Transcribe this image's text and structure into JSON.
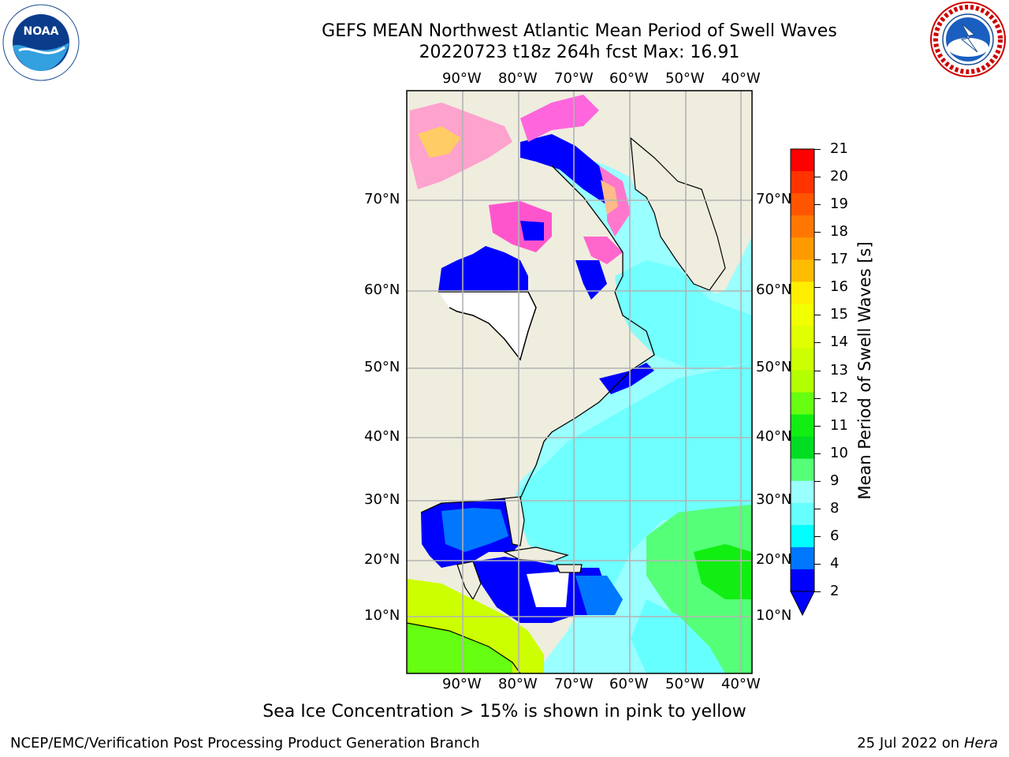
{
  "header": {
    "title_line1": "GEFS MEAN Northwest Atlantic Mean Period of Swell Waves",
    "title_line2": "20220723 t18z 264h fcst   Max: 16.91"
  },
  "logos": {
    "left": "NOAA",
    "left_ring_text": "NATIONAL OCEANIC AND ATMOSPHERIC ADMINISTRATION · U.S. DEPARTMENT OF COMMERCE",
    "right_ring_text": "NATIONAL WEATHER SERVICE"
  },
  "map": {
    "lon_labels": [
      "90°W",
      "80°W",
      "70°W",
      "60°W",
      "50°W",
      "40°W"
    ],
    "lat_labels": [
      "70°N",
      "60°N",
      "50°N",
      "40°N",
      "30°N",
      "20°N",
      "10°N"
    ],
    "colors": {
      "land": "#efedde",
      "grid": "#b3b3b3",
      "coast": "#000000"
    }
  },
  "colorbar": {
    "label": "Mean Period of Swell Waves [s]",
    "ticks": [
      "21",
      "20",
      "19",
      "18",
      "17",
      "16",
      "15",
      "14",
      "13",
      "12",
      "11",
      "10",
      "9",
      "8",
      "6",
      "4",
      "2"
    ],
    "colors": [
      "#ff0000",
      "#ff3300",
      "#ff5500",
      "#ff7700",
      "#ff9900",
      "#ffbb00",
      "#ffee00",
      "#f2ff00",
      "#e0ff00",
      "#ccff00",
      "#b3ff00",
      "#66ff11",
      "#11ee11",
      "#00dd22",
      "#55ff77",
      "#99ffff",
      "#66ffff",
      "#00ffff",
      "#0077ff",
      "#0000ff"
    ]
  },
  "footer": {
    "note": "Sea Ice Concentration > 15% is shown in pink to yellow",
    "credit": "NCEP/EMC/Verification Post Processing Product Generation Branch",
    "date": "25 Jul 2022 on",
    "machine": "Hera"
  }
}
